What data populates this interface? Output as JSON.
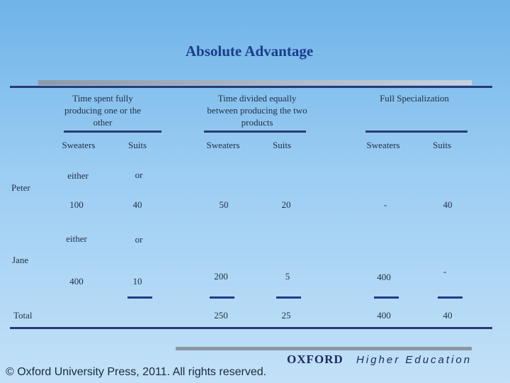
{
  "title": "Absolute Advantage",
  "headers": {
    "col1": "Time spent fully producing one or the other",
    "col2": "Time divided equally between producing the two products",
    "col3": "Full Specialization"
  },
  "subheaders": [
    "Sweaters",
    "Suits",
    "Sweaters",
    "Suits",
    "Sweaters",
    "Suits"
  ],
  "rows": {
    "peter": {
      "label": "Peter",
      "either": "either",
      "or": "or",
      "values": [
        "100",
        "40",
        "50",
        "20",
        "-",
        "40"
      ]
    },
    "jane": {
      "label": "Jane",
      "either": "either",
      "or": "or",
      "values": [
        "400",
        "10",
        "200",
        "5",
        "400",
        "-"
      ]
    },
    "total": {
      "label": "Total",
      "values": [
        "250",
        "25",
        "400",
        "40"
      ]
    }
  },
  "footer": {
    "copyright": "© Oxford University Press, 2011. All rights reserved.",
    "brand": "OXFORD",
    "brand_sub": "Higher Education"
  }
}
